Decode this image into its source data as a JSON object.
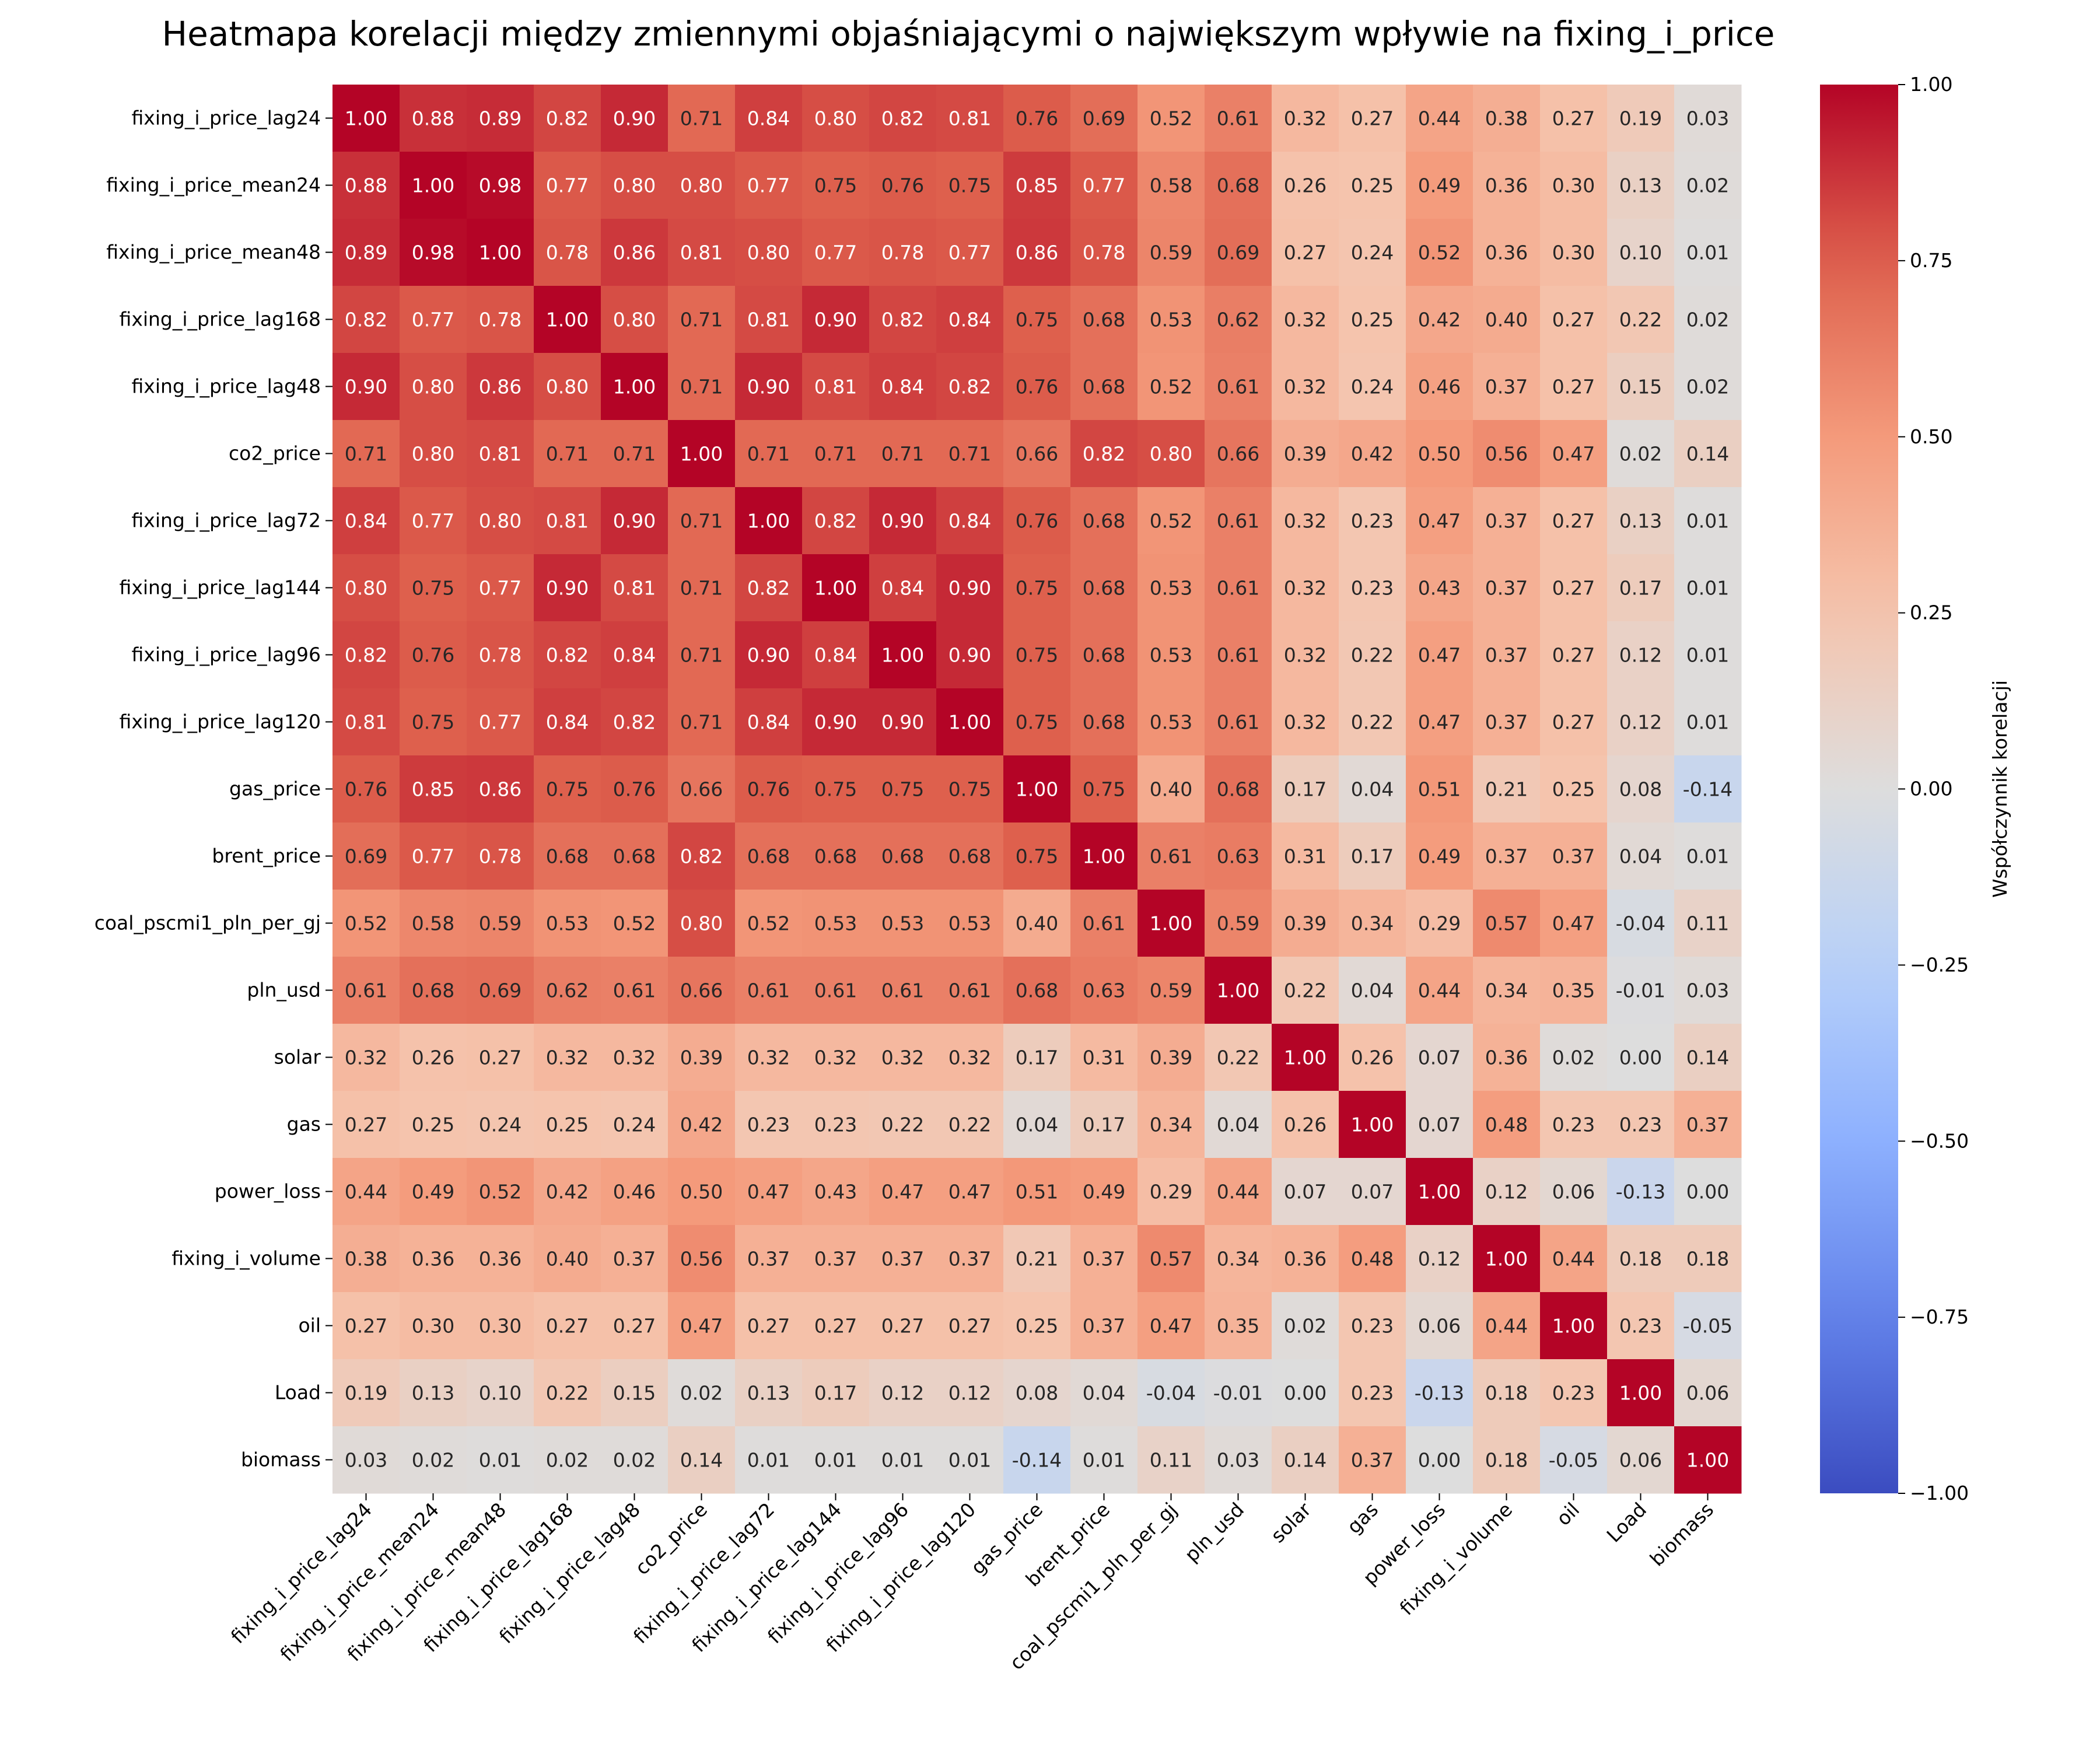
{
  "chart_data": {
    "type": "heatmap",
    "title": "Heatmapa korelacji między zmiennymi objaśniającymi o największym wpływie na fixing_i_price",
    "variables": [
      "fixing_i_price_lag24",
      "fixing_i_price_mean24",
      "fixing_i_price_mean48",
      "fixing_i_price_lag168",
      "fixing_i_price_lag48",
      "co2_price",
      "fixing_i_price_lag72",
      "fixing_i_price_lag144",
      "fixing_i_price_lag96",
      "fixing_i_price_lag120",
      "gas_price",
      "brent_price",
      "coal_pscmi1_pln_per_gj",
      "pln_usd",
      "solar",
      "gas",
      "power_loss",
      "fixing_i_volume",
      "oil",
      "Load",
      "biomass"
    ],
    "matrix": [
      [
        1.0,
        0.88,
        0.89,
        0.82,
        0.9,
        0.71,
        0.84,
        0.8,
        0.82,
        0.81,
        0.76,
        0.69,
        0.52,
        0.61,
        0.32,
        0.27,
        0.44,
        0.38,
        0.27,
        0.19,
        0.03
      ],
      [
        0.88,
        1.0,
        0.98,
        0.77,
        0.8,
        0.8,
        0.77,
        0.75,
        0.76,
        0.75,
        0.85,
        0.77,
        0.58,
        0.68,
        0.26,
        0.25,
        0.49,
        0.36,
        0.3,
        0.13,
        0.02
      ],
      [
        0.89,
        0.98,
        1.0,
        0.78,
        0.86,
        0.81,
        0.8,
        0.77,
        0.78,
        0.77,
        0.86,
        0.78,
        0.59,
        0.69,
        0.27,
        0.24,
        0.52,
        0.36,
        0.3,
        0.1,
        0.01
      ],
      [
        0.82,
        0.77,
        0.78,
        1.0,
        0.8,
        0.71,
        0.81,
        0.9,
        0.82,
        0.84,
        0.75,
        0.68,
        0.53,
        0.62,
        0.32,
        0.25,
        0.42,
        0.4,
        0.27,
        0.22,
        0.02
      ],
      [
        0.9,
        0.8,
        0.86,
        0.8,
        1.0,
        0.71,
        0.9,
        0.81,
        0.84,
        0.82,
        0.76,
        0.68,
        0.52,
        0.61,
        0.32,
        0.24,
        0.46,
        0.37,
        0.27,
        0.15,
        0.02
      ],
      [
        0.71,
        0.8,
        0.81,
        0.71,
        0.71,
        1.0,
        0.71,
        0.71,
        0.71,
        0.71,
        0.66,
        0.82,
        0.8,
        0.66,
        0.39,
        0.42,
        0.5,
        0.56,
        0.47,
        0.02,
        0.14
      ],
      [
        0.84,
        0.77,
        0.8,
        0.81,
        0.9,
        0.71,
        1.0,
        0.82,
        0.9,
        0.84,
        0.76,
        0.68,
        0.52,
        0.61,
        0.32,
        0.23,
        0.47,
        0.37,
        0.27,
        0.13,
        0.01
      ],
      [
        0.8,
        0.75,
        0.77,
        0.9,
        0.81,
        0.71,
        0.82,
        1.0,
        0.84,
        0.9,
        0.75,
        0.68,
        0.53,
        0.61,
        0.32,
        0.23,
        0.43,
        0.37,
        0.27,
        0.17,
        0.01
      ],
      [
        0.82,
        0.76,
        0.78,
        0.82,
        0.84,
        0.71,
        0.9,
        0.84,
        1.0,
        0.9,
        0.75,
        0.68,
        0.53,
        0.61,
        0.32,
        0.22,
        0.47,
        0.37,
        0.27,
        0.12,
        0.01
      ],
      [
        0.81,
        0.75,
        0.77,
        0.84,
        0.82,
        0.71,
        0.84,
        0.9,
        0.9,
        1.0,
        0.75,
        0.68,
        0.53,
        0.61,
        0.32,
        0.22,
        0.47,
        0.37,
        0.27,
        0.12,
        0.01
      ],
      [
        0.76,
        0.85,
        0.86,
        0.75,
        0.76,
        0.66,
        0.76,
        0.75,
        0.75,
        0.75,
        1.0,
        0.75,
        0.4,
        0.68,
        0.17,
        0.04,
        0.51,
        0.21,
        0.25,
        0.08,
        -0.14
      ],
      [
        0.69,
        0.77,
        0.78,
        0.68,
        0.68,
        0.82,
        0.68,
        0.68,
        0.68,
        0.68,
        0.75,
        1.0,
        0.61,
        0.63,
        0.31,
        0.17,
        0.49,
        0.37,
        0.37,
        0.04,
        0.01
      ],
      [
        0.52,
        0.58,
        0.59,
        0.53,
        0.52,
        0.8,
        0.52,
        0.53,
        0.53,
        0.53,
        0.4,
        0.61,
        1.0,
        0.59,
        0.39,
        0.34,
        0.29,
        0.57,
        0.47,
        -0.04,
        0.11
      ],
      [
        0.61,
        0.68,
        0.69,
        0.62,
        0.61,
        0.66,
        0.61,
        0.61,
        0.61,
        0.61,
        0.68,
        0.63,
        0.59,
        1.0,
        0.22,
        0.04,
        0.44,
        0.34,
        0.35,
        -0.01,
        0.03
      ],
      [
        0.32,
        0.26,
        0.27,
        0.32,
        0.32,
        0.39,
        0.32,
        0.32,
        0.32,
        0.32,
        0.17,
        0.31,
        0.39,
        0.22,
        1.0,
        0.26,
        0.07,
        0.36,
        0.02,
        0.0,
        0.14
      ],
      [
        0.27,
        0.25,
        0.24,
        0.25,
        0.24,
        0.42,
        0.23,
        0.23,
        0.22,
        0.22,
        0.04,
        0.17,
        0.34,
        0.04,
        0.26,
        1.0,
        0.07,
        0.48,
        0.23,
        0.23,
        0.37
      ],
      [
        0.44,
        0.49,
        0.52,
        0.42,
        0.46,
        0.5,
        0.47,
        0.43,
        0.47,
        0.47,
        0.51,
        0.49,
        0.29,
        0.44,
        0.07,
        0.07,
        1.0,
        0.12,
        0.06,
        -0.13,
        0.0
      ],
      [
        0.38,
        0.36,
        0.36,
        0.4,
        0.37,
        0.56,
        0.37,
        0.37,
        0.37,
        0.37,
        0.21,
        0.37,
        0.57,
        0.34,
        0.36,
        0.48,
        0.12,
        1.0,
        0.44,
        0.18,
        0.18
      ],
      [
        0.27,
        0.3,
        0.3,
        0.27,
        0.27,
        0.47,
        0.27,
        0.27,
        0.27,
        0.27,
        0.25,
        0.37,
        0.47,
        0.35,
        0.02,
        0.23,
        0.06,
        0.44,
        1.0,
        0.23,
        -0.05
      ],
      [
        0.19,
        0.13,
        0.1,
        0.22,
        0.15,
        0.02,
        0.13,
        0.17,
        0.12,
        0.12,
        0.08,
        0.04,
        -0.04,
        -0.01,
        0.0,
        0.23,
        -0.13,
        0.18,
        0.23,
        1.0,
        0.06
      ],
      [
        0.03,
        0.02,
        0.01,
        0.02,
        0.02,
        0.14,
        0.01,
        0.01,
        0.01,
        0.01,
        -0.14,
        0.01,
        0.11,
        0.03,
        0.14,
        0.37,
        0.0,
        0.18,
        -0.05,
        0.06,
        1.0
      ]
    ],
    "colormap": "coolwarm",
    "vmin": -1.0,
    "vmax": 1.0,
    "annotation_format": "0.00",
    "colorbar": {
      "label": "Współczynnik korelacji",
      "ticks": [
        "1.00",
        "0.75",
        "0.50",
        "0.25",
        "0.00",
        "−0.25",
        "−0.50",
        "−0.75",
        "−1.00"
      ],
      "tick_values": [
        1.0,
        0.75,
        0.5,
        0.25,
        0.0,
        -0.25,
        -0.5,
        -0.75,
        -1.0
      ]
    }
  }
}
